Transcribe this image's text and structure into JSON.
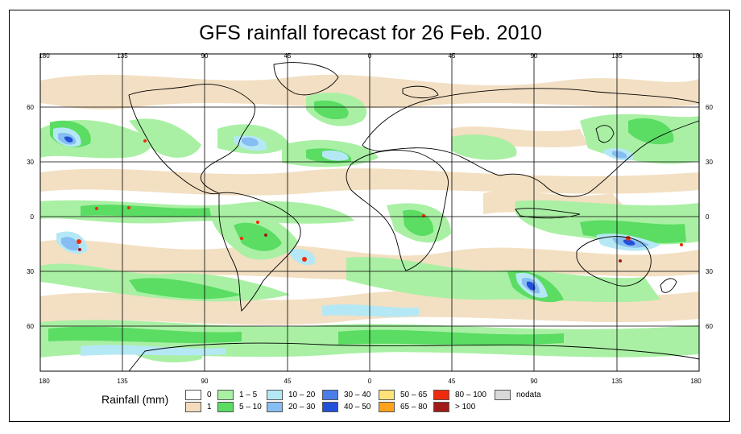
{
  "title": "GFS rainfall forecast for 26 Feb. 2010",
  "axes": {
    "lon_ticks_top": [
      "180",
      "135",
      "90",
      "45",
      "0",
      "45",
      "90",
      "135",
      "180"
    ],
    "lon_ticks_bottom": [
      "180",
      "135",
      "90",
      "45",
      "0",
      "45",
      "90",
      "135",
      "180"
    ],
    "lat_ticks_left": [
      "60",
      "30",
      "0",
      "30",
      "60"
    ],
    "lat_ticks_right": [
      "60",
      "30",
      "0",
      "30",
      "60"
    ]
  },
  "legend": {
    "title": "Rainfall (mm)",
    "items": [
      {
        "label": "0",
        "color": "#ffffff"
      },
      {
        "label": "1",
        "color": "#f2dcbc"
      },
      {
        "label": "1 – 5",
        "color": "#a9f0a4"
      },
      {
        "label": "5 – 10",
        "color": "#5bdc63"
      },
      {
        "label": "10 – 20",
        "color": "#b5e8f5"
      },
      {
        "label": "20 – 30",
        "color": "#86bdf2"
      },
      {
        "label": "30 – 40",
        "color": "#4a7ee8"
      },
      {
        "label": "40 – 50",
        "color": "#2350d8"
      },
      {
        "label": "50 – 65",
        "color": "#ffe27a"
      },
      {
        "label": "65 – 80",
        "color": "#ffa21c"
      },
      {
        "label": "80 – 100",
        "color": "#ee2b0d"
      },
      {
        "label": "> 100",
        "color": "#a01a1a"
      },
      {
        "label": "nodata",
        "color": "#d9d9d9"
      }
    ]
  }
}
